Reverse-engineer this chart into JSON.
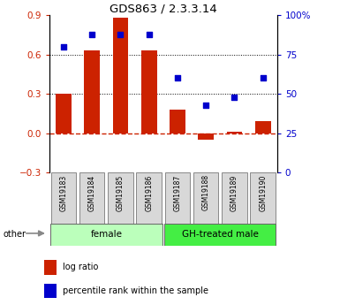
{
  "title": "GDS863 / 2.3.3.14",
  "samples": [
    "GSM19183",
    "GSM19184",
    "GSM19185",
    "GSM19186",
    "GSM19187",
    "GSM19188",
    "GSM19189",
    "GSM19190"
  ],
  "log_ratio": [
    0.3,
    0.63,
    0.88,
    0.63,
    0.18,
    -0.05,
    0.01,
    0.09
  ],
  "percentile_rank": [
    80,
    88,
    88,
    88,
    60,
    43,
    48,
    60
  ],
  "ylim_left": [
    -0.3,
    0.9
  ],
  "ylim_right": [
    0,
    100
  ],
  "yticks_left": [
    -0.3,
    0.0,
    0.3,
    0.6,
    0.9
  ],
  "yticks_right": [
    0,
    25,
    50,
    75,
    100
  ],
  "bar_color": "#cc2200",
  "dot_color": "#0000cc",
  "hline_color": "#cc2200",
  "dotted_lines": [
    0.3,
    0.6
  ],
  "groups": [
    {
      "label": "female",
      "start": 0,
      "end": 4,
      "color": "#bbffbb"
    },
    {
      "label": "GH-treated male",
      "start": 4,
      "end": 8,
      "color": "#44ee44"
    }
  ],
  "other_label": "other",
  "legend_items": [
    {
      "label": "log ratio",
      "color": "#cc2200"
    },
    {
      "label": "percentile rank within the sample",
      "color": "#0000cc"
    }
  ],
  "bg_color": "#ffffff",
  "tick_color_left": "#cc2200",
  "tick_color_right": "#0000cc"
}
